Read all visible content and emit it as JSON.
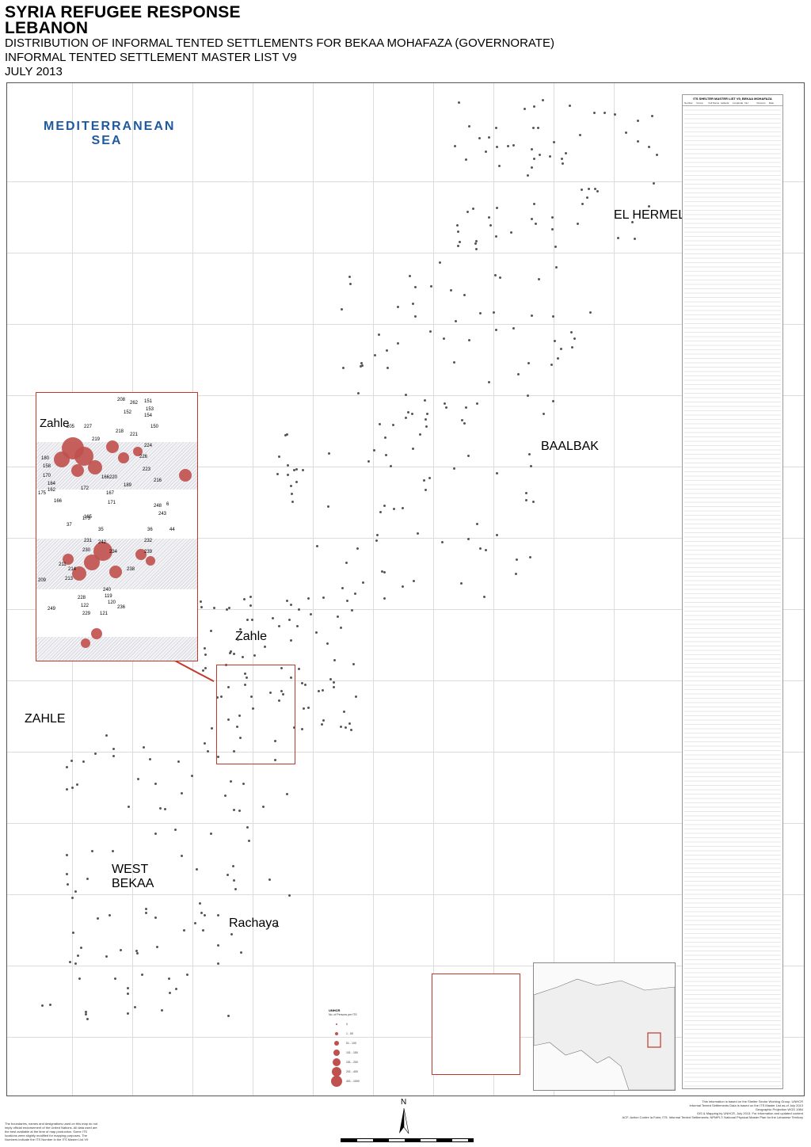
{
  "header": {
    "line1": "SYRIA REFUGEE RESPONSE",
    "line2": "LEBANON",
    "line3": "DISTRIBUTION OF INFORMAL TENTED SETTLEMENTS FOR BEKAA MOHAFAZA (GOVERNORATE)",
    "line4": "INFORMAL TENTED SETTLEMENT MASTER LIST V9",
    "line5": "JULY 2013"
  },
  "map": {
    "sea_label_1": "MEDITERRANEAN",
    "sea_label_2": "SEA",
    "regions": {
      "el_hermel": "EL HERMEL",
      "baalbak": "BAALBAK",
      "zahle_district": "ZAHLE",
      "zahle_town": "Zahle",
      "west_bekaa_1": "WEST",
      "west_bekaa_2": "BEKAA",
      "rachaya": "Rachaya"
    },
    "colors": {
      "settlement": "#c0504d",
      "frame": "#c0392b",
      "sea": "#1f5a9e"
    }
  },
  "inset": {
    "title": "Zahle",
    "numbers": [
      "208",
      "262",
      "151",
      "153",
      "152",
      "154",
      "205",
      "227",
      "150",
      "218",
      "221",
      "219",
      "224",
      "226",
      "223",
      "180",
      "158",
      "170",
      "166",
      "220",
      "216",
      "189",
      "164",
      "162",
      "172",
      "167",
      "175",
      "166",
      "171",
      "248",
      "6",
      "243",
      "37",
      "165",
      "35",
      "36",
      "44",
      "173",
      "231",
      "242",
      "232",
      "230",
      "234",
      "239",
      "211",
      "214",
      "238",
      "213",
      "209",
      "240",
      "228",
      "119",
      "122",
      "120",
      "236",
      "229",
      "121",
      "249"
    ]
  },
  "table": {
    "title": "ITS SHELTER MASTER LIST V9, BEKAA MOHAFAZA",
    "columns": [
      "Number",
      "Group",
      "Full Name",
      "Latitude",
      "Longitude",
      "HH",
      "Persons",
      "Date"
    ]
  },
  "legend": {
    "title": "UNHCR",
    "subtitle": "No. of Persons per ITS",
    "size_classes": [
      "0",
      "1 - 50",
      "51 - 100",
      "101 - 150",
      "151 - 200",
      "201 - 400",
      "401 - 1000"
    ]
  },
  "north": "N",
  "disclaimer": "The boundaries, names and designations used on this map do not imply official endorsement of the United Nations. All data used are the best available at the time of map production. Some ITS locations were slightly modified for mapping purposes. The Numbers indicate the ITS Number in the ITS Master List V9",
  "credits": [
    "This information is based on the Shelter Sector Working Group, UNHCR",
    "Informal Tented Settlements Data is based on the ITS Master List as of July 2013",
    "Geographic Projection WGS 1984",
    "GIS & Mapping by UNHCR, July 2013. For information and updated content",
    "ACF: Action Contre la Faim; ITS: Informal Tented Settlements; NPMPLT: National Physical Master Plan for the Lebanese Territory"
  ]
}
